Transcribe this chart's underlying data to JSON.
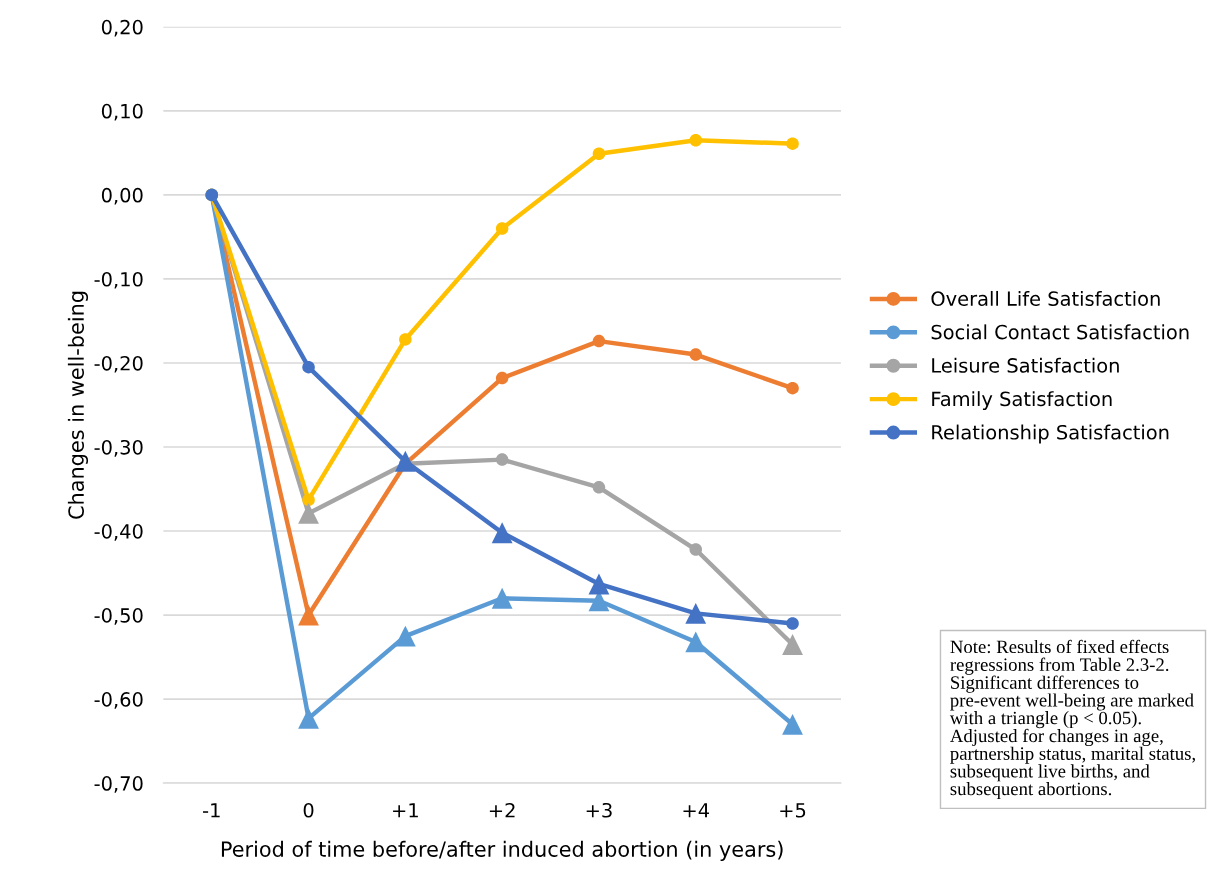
{
  "chart_data": {
    "type": "line",
    "ylabel": "Changes in well-being",
    "xlabel": "Period of time before/after induced abortion (in years)",
    "categories": [
      "-1",
      "0",
      "+1",
      "+2",
      "+3",
      "+4",
      "+5"
    ],
    "ylim": [
      -0.7,
      0.2
    ],
    "yticks": [
      {
        "value": -0.7,
        "label": "-0,70"
      },
      {
        "value": -0.6,
        "label": "-0,60"
      },
      {
        "value": -0.5,
        "label": "-0,50"
      },
      {
        "value": -0.4,
        "label": "-0,40"
      },
      {
        "value": -0.3,
        "label": "-0,30"
      },
      {
        "value": -0.2,
        "label": "-0,20"
      },
      {
        "value": -0.1,
        "label": "-0,10"
      },
      {
        "value": 0,
        "label": "0,00"
      },
      {
        "value": 0.1,
        "label": "0,10"
      },
      {
        "value": 0.2,
        "label": "0,20"
      }
    ],
    "grid": "y",
    "legend": "right",
    "marker": "circle",
    "series": [
      {
        "name": "Overall Life Satisfaction",
        "color": "#ed7d31",
        "values": [
          0,
          -0.5,
          -0.32,
          -0.218,
          -0.174,
          -0.19,
          -0.23
        ]
      },
      {
        "name": "Social Contact Satisfaction",
        "color": "#5b9bd5",
        "marker": "triangle",
        "values": [
          0,
          -0.623,
          -0.525,
          -0.48,
          -0.483,
          -0.532,
          -0.63
        ]
      },
      {
        "name": "Leisure Satisfaction",
        "color": "#a5a5a5",
        "values": [
          0,
          -0.379,
          -0.32,
          -0.315,
          -0.348,
          -0.422,
          -0.535
        ]
      },
      {
        "name": "Family Satisfaction",
        "color": "#ffc000",
        "values": [
          0,
          -0.363,
          -0.172,
          -0.04,
          0.049,
          0.065,
          0.061
        ]
      },
      {
        "name": "Relationship Satisfaction",
        "color": "#4472c4",
        "marker": "triangle",
        "values": [
          0,
          -0.205,
          -0.317,
          -0.402,
          -0.463,
          -0.498,
          -0.51
        ]
      },
      {
        "type": "scatter",
        "marker": "triangle",
        "color": "#ed7d31",
        "x": [
          "0"
        ],
        "values": [
          -0.5
        ]
      },
      {
        "type": "scatter",
        "marker": "circle",
        "color": "#5b9bd5",
        "x": [
          "-1"
        ],
        "values": [
          0
        ]
      },
      {
        "type": "scatter",
        "marker": "triangle",
        "color": "#a5a5a5",
        "x": [
          "0",
          "+5"
        ],
        "values": [
          -0.379,
          -0.535
        ]
      },
      {
        "type": "scatter",
        "marker": "circle",
        "color": "#4472c4",
        "x": [
          "-1",
          "0",
          "+5"
        ],
        "values": [
          0,
          -0.205,
          -0.51
        ]
      }
    ],
    "annotations": [
      "Note: Results of fixed effects regressions from Table 2.3-2. Significant differences to pre-event well-being are marked with a triangle (p < 0.05). Adjusted for changes in age, partnership status, marital status, subsequent live births, and subsequent abortions."
    ]
  }
}
